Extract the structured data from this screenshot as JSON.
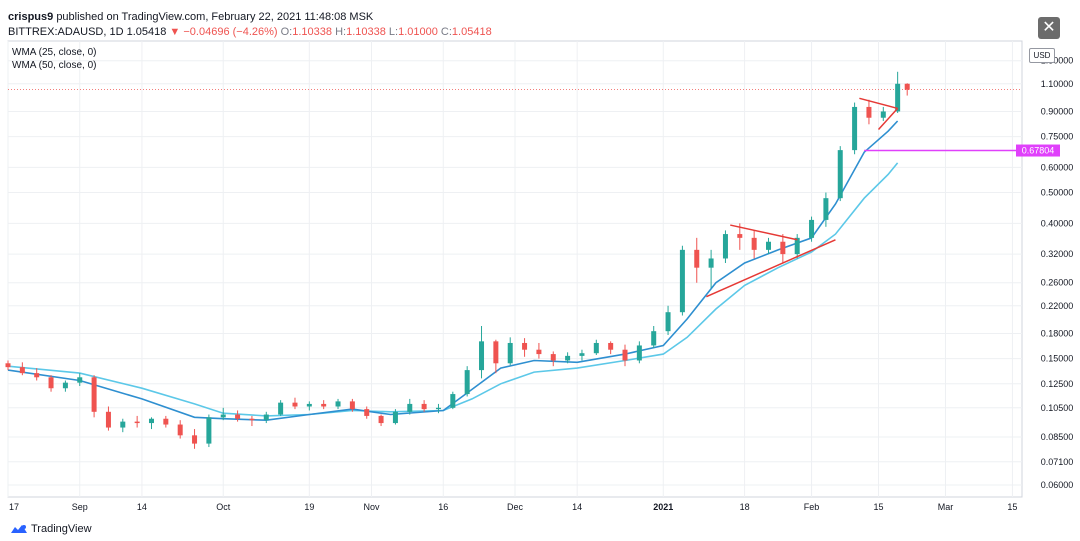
{
  "header": {
    "publisher": "crispus9",
    "published_text": "published on TradingView.com, February 22, 2021 11:48:08 MSK",
    "symbol": "BITTREX:ADAUSD, 1D",
    "last": "1.05418",
    "change_arrow": "▼",
    "change": "−0.04696 (−4.26%)",
    "o_label": "O:",
    "o": "1.10338",
    "h_label": "H:",
    "h": "1.10338",
    "l_label": "L:",
    "l": "1.01000",
    "c_label": "C:",
    "c": "1.05418"
  },
  "close_icon": "close-icon",
  "currency": "USD",
  "footer": {
    "brand": "TradingView",
    "logo_icon": "tradingview-logo-icon"
  },
  "colors": {
    "up": "#26a69a",
    "down": "#ef5350",
    "wma25": "#2e8fd0",
    "wma50": "#5cc8e8",
    "trend": "#e53935",
    "level": "#e040fb",
    "grid": "#eef0f3",
    "close_line": "#ef5350"
  },
  "chart_data": {
    "type": "candlestick",
    "y_scale": "log",
    "ylim": [
      0.055,
      1.5
    ],
    "legend": [
      {
        "name": "WMA (25, close, 0)"
      },
      {
        "name": "WMA (50, close, 0)"
      }
    ],
    "y_ticks": [
      "1.30000",
      "1.10000",
      "0.90000",
      "0.75000",
      "0.60000",
      "0.50000",
      "0.40000",
      "0.32000",
      "0.26000",
      "0.22000",
      "0.18000",
      "0.15000",
      "0.12500",
      "0.10500",
      "0.08500",
      "0.07100",
      "0.06000"
    ],
    "y_tick_values": [
      1.3,
      1.1,
      0.9,
      0.75,
      0.6,
      0.5,
      0.4,
      0.32,
      0.26,
      0.22,
      0.18,
      0.15,
      0.125,
      0.105,
      0.085,
      0.071,
      0.06
    ],
    "x_range": [
      "2020-08-17",
      "2021-03-17"
    ],
    "x_ticks": [
      {
        "label": "17",
        "date": "2020-08-17"
      },
      {
        "label": "Sep",
        "date": "2020-09-01"
      },
      {
        "label": "14",
        "date": "2020-09-14"
      },
      {
        "label": "Oct",
        "date": "2020-10-01"
      },
      {
        "label": "19",
        "date": "2020-10-19"
      },
      {
        "label": "Nov",
        "date": "2020-11-01"
      },
      {
        "label": "16",
        "date": "2020-11-16"
      },
      {
        "label": "Dec",
        "date": "2020-12-01"
      },
      {
        "label": "14",
        "date": "2020-12-14"
      },
      {
        "label": "2021",
        "date": "2021-01-01",
        "bold": true
      },
      {
        "label": "18",
        "date": "2021-01-18"
      },
      {
        "label": "Feb",
        "date": "2021-02-01"
      },
      {
        "label": "15",
        "date": "2021-02-15"
      },
      {
        "label": "Mar",
        "date": "2021-03-01"
      },
      {
        "label": "15",
        "date": "2021-03-15"
      }
    ],
    "last_close": 1.05418,
    "level": {
      "value": 0.67804,
      "label": "0.67804",
      "from": "2021-02-12"
    },
    "trendlines": [
      {
        "x1": "2021-01-15",
        "y1": 0.395,
        "x2": "2021-01-29",
        "y2": 0.355
      },
      {
        "x1": "2021-01-10",
        "y1": 0.235,
        "x2": "2021-02-06",
        "y2": 0.355
      },
      {
        "x1": "2021-02-11",
        "y1": 0.99,
        "x2": "2021-02-19",
        "y2": 0.92
      },
      {
        "x1": "2021-02-15",
        "y1": 0.79,
        "x2": "2021-02-19",
        "y2": 0.92
      }
    ],
    "wma25": [
      {
        "x": "2020-08-17",
        "y": 0.138
      },
      {
        "x": "2020-09-01",
        "y": 0.128
      },
      {
        "x": "2020-09-14",
        "y": 0.112
      },
      {
        "x": "2020-09-25",
        "y": 0.098
      },
      {
        "x": "2020-10-01",
        "y": 0.097
      },
      {
        "x": "2020-10-10",
        "y": 0.096
      },
      {
        "x": "2020-10-19",
        "y": 0.1
      },
      {
        "x": "2020-10-28",
        "y": 0.104
      },
      {
        "x": "2020-11-05",
        "y": 0.1
      },
      {
        "x": "2020-11-16",
        "y": 0.103
      },
      {
        "x": "2020-11-22",
        "y": 0.12
      },
      {
        "x": "2020-11-28",
        "y": 0.14
      },
      {
        "x": "2020-12-05",
        "y": 0.148
      },
      {
        "x": "2020-12-14",
        "y": 0.146
      },
      {
        "x": "2020-12-24",
        "y": 0.155
      },
      {
        "x": "2021-01-01",
        "y": 0.165
      },
      {
        "x": "2021-01-06",
        "y": 0.2
      },
      {
        "x": "2021-01-12",
        "y": 0.26
      },
      {
        "x": "2021-01-18",
        "y": 0.3
      },
      {
        "x": "2021-01-25",
        "y": 0.33
      },
      {
        "x": "2021-02-01",
        "y": 0.36
      },
      {
        "x": "2021-02-06",
        "y": 0.46
      },
      {
        "x": "2021-02-12",
        "y": 0.67
      },
      {
        "x": "2021-02-17",
        "y": 0.78
      },
      {
        "x": "2021-02-19",
        "y": 0.84
      }
    ],
    "wma50": [
      {
        "x": "2020-08-17",
        "y": 0.142
      },
      {
        "x": "2020-09-01",
        "y": 0.135
      },
      {
        "x": "2020-09-14",
        "y": 0.121
      },
      {
        "x": "2020-09-25",
        "y": 0.108
      },
      {
        "x": "2020-10-01",
        "y": 0.101
      },
      {
        "x": "2020-10-10",
        "y": 0.099
      },
      {
        "x": "2020-10-19",
        "y": 0.1
      },
      {
        "x": "2020-10-28",
        "y": 0.103
      },
      {
        "x": "2020-11-05",
        "y": 0.102
      },
      {
        "x": "2020-11-16",
        "y": 0.103
      },
      {
        "x": "2020-11-22",
        "y": 0.112
      },
      {
        "x": "2020-11-28",
        "y": 0.125
      },
      {
        "x": "2020-12-05",
        "y": 0.136
      },
      {
        "x": "2020-12-14",
        "y": 0.14
      },
      {
        "x": "2020-12-24",
        "y": 0.148
      },
      {
        "x": "2021-01-01",
        "y": 0.155
      },
      {
        "x": "2021-01-06",
        "y": 0.175
      },
      {
        "x": "2021-01-12",
        "y": 0.215
      },
      {
        "x": "2021-01-18",
        "y": 0.255
      },
      {
        "x": "2021-01-25",
        "y": 0.29
      },
      {
        "x": "2021-02-01",
        "y": 0.325
      },
      {
        "x": "2021-02-06",
        "y": 0.37
      },
      {
        "x": "2021-02-12",
        "y": 0.48
      },
      {
        "x": "2021-02-17",
        "y": 0.57
      },
      {
        "x": "2021-02-19",
        "y": 0.62
      }
    ],
    "candles": [
      {
        "x": "2020-08-17",
        "o": 0.145,
        "h": 0.148,
        "l": 0.138,
        "c": 0.141
      },
      {
        "x": "2020-08-20",
        "o": 0.141,
        "h": 0.146,
        "l": 0.133,
        "c": 0.135
      },
      {
        "x": "2020-08-23",
        "o": 0.135,
        "h": 0.14,
        "l": 0.128,
        "c": 0.131
      },
      {
        "x": "2020-08-26",
        "o": 0.131,
        "h": 0.133,
        "l": 0.118,
        "c": 0.121
      },
      {
        "x": "2020-08-29",
        "o": 0.121,
        "h": 0.128,
        "l": 0.118,
        "c": 0.126
      },
      {
        "x": "2020-09-01",
        "o": 0.126,
        "h": 0.135,
        "l": 0.123,
        "c": 0.131
      },
      {
        "x": "2020-09-04",
        "o": 0.131,
        "h": 0.133,
        "l": 0.098,
        "c": 0.102
      },
      {
        "x": "2020-09-07",
        "o": 0.102,
        "h": 0.106,
        "l": 0.089,
        "c": 0.091
      },
      {
        "x": "2020-09-10",
        "o": 0.091,
        "h": 0.097,
        "l": 0.088,
        "c": 0.095
      },
      {
        "x": "2020-09-13",
        "o": 0.095,
        "h": 0.099,
        "l": 0.091,
        "c": 0.094
      },
      {
        "x": "2020-09-16",
        "o": 0.094,
        "h": 0.098,
        "l": 0.09,
        "c": 0.097
      },
      {
        "x": "2020-09-19",
        "o": 0.097,
        "h": 0.099,
        "l": 0.091,
        "c": 0.093
      },
      {
        "x": "2020-09-22",
        "o": 0.093,
        "h": 0.096,
        "l": 0.084,
        "c": 0.086
      },
      {
        "x": "2020-09-25",
        "o": 0.086,
        "h": 0.09,
        "l": 0.078,
        "c": 0.081
      },
      {
        "x": "2020-09-28",
        "o": 0.081,
        "h": 0.1,
        "l": 0.079,
        "c": 0.098
      },
      {
        "x": "2020-10-01",
        "o": 0.098,
        "h": 0.105,
        "l": 0.096,
        "c": 0.1
      },
      {
        "x": "2020-10-04",
        "o": 0.1,
        "h": 0.103,
        "l": 0.095,
        "c": 0.097
      },
      {
        "x": "2020-10-07",
        "o": 0.097,
        "h": 0.099,
        "l": 0.092,
        "c": 0.096
      },
      {
        "x": "2020-10-10",
        "o": 0.096,
        "h": 0.102,
        "l": 0.094,
        "c": 0.1
      },
      {
        "x": "2020-10-13",
        "o": 0.1,
        "h": 0.111,
        "l": 0.099,
        "c": 0.109
      },
      {
        "x": "2020-10-16",
        "o": 0.109,
        "h": 0.113,
        "l": 0.104,
        "c": 0.106
      },
      {
        "x": "2020-10-19",
        "o": 0.106,
        "h": 0.11,
        "l": 0.103,
        "c": 0.108
      },
      {
        "x": "2020-10-22",
        "o": 0.108,
        "h": 0.111,
        "l": 0.104,
        "c": 0.106
      },
      {
        "x": "2020-10-25",
        "o": 0.106,
        "h": 0.112,
        "l": 0.104,
        "c": 0.11
      },
      {
        "x": "2020-10-28",
        "o": 0.11,
        "h": 0.112,
        "l": 0.102,
        "c": 0.104
      },
      {
        "x": "2020-10-31",
        "o": 0.104,
        "h": 0.106,
        "l": 0.097,
        "c": 0.099
      },
      {
        "x": "2020-11-03",
        "o": 0.099,
        "h": 0.1,
        "l": 0.092,
        "c": 0.094
      },
      {
        "x": "2020-11-06",
        "o": 0.094,
        "h": 0.104,
        "l": 0.093,
        "c": 0.102
      },
      {
        "x": "2020-11-09",
        "o": 0.102,
        "h": 0.112,
        "l": 0.1,
        "c": 0.108
      },
      {
        "x": "2020-11-12",
        "o": 0.108,
        "h": 0.111,
        "l": 0.102,
        "c": 0.104
      },
      {
        "x": "2020-11-15",
        "o": 0.104,
        "h": 0.108,
        "l": 0.101,
        "c": 0.105
      },
      {
        "x": "2020-11-18",
        "o": 0.105,
        "h": 0.118,
        "l": 0.104,
        "c": 0.116
      },
      {
        "x": "2020-11-21",
        "o": 0.116,
        "h": 0.142,
        "l": 0.114,
        "c": 0.138
      },
      {
        "x": "2020-11-24",
        "o": 0.138,
        "h": 0.19,
        "l": 0.13,
        "c": 0.17
      },
      {
        "x": "2020-11-27",
        "o": 0.17,
        "h": 0.172,
        "l": 0.135,
        "c": 0.145
      },
      {
        "x": "2020-11-30",
        "o": 0.145,
        "h": 0.175,
        "l": 0.143,
        "c": 0.168
      },
      {
        "x": "2020-12-03",
        "o": 0.168,
        "h": 0.174,
        "l": 0.152,
        "c": 0.16
      },
      {
        "x": "2020-12-06",
        "o": 0.16,
        "h": 0.168,
        "l": 0.15,
        "c": 0.155
      },
      {
        "x": "2020-12-09",
        "o": 0.155,
        "h": 0.158,
        "l": 0.142,
        "c": 0.148
      },
      {
        "x": "2020-12-12",
        "o": 0.148,
        "h": 0.157,
        "l": 0.145,
        "c": 0.153
      },
      {
        "x": "2020-12-15",
        "o": 0.153,
        "h": 0.16,
        "l": 0.148,
        "c": 0.156
      },
      {
        "x": "2020-12-18",
        "o": 0.156,
        "h": 0.172,
        "l": 0.154,
        "c": 0.168
      },
      {
        "x": "2020-12-21",
        "o": 0.168,
        "h": 0.17,
        "l": 0.155,
        "c": 0.16
      },
      {
        "x": "2020-12-24",
        "o": 0.16,
        "h": 0.166,
        "l": 0.142,
        "c": 0.148
      },
      {
        "x": "2020-12-27",
        "o": 0.148,
        "h": 0.17,
        "l": 0.145,
        "c": 0.165
      },
      {
        "x": "2020-12-30",
        "o": 0.165,
        "h": 0.19,
        "l": 0.162,
        "c": 0.183
      },
      {
        "x": "2021-01-02",
        "o": 0.183,
        "h": 0.22,
        "l": 0.178,
        "c": 0.21
      },
      {
        "x": "2021-01-05",
        "o": 0.21,
        "h": 0.34,
        "l": 0.205,
        "c": 0.33
      },
      {
        "x": "2021-01-08",
        "o": 0.33,
        "h": 0.36,
        "l": 0.26,
        "c": 0.29
      },
      {
        "x": "2021-01-11",
        "o": 0.29,
        "h": 0.33,
        "l": 0.25,
        "c": 0.31
      },
      {
        "x": "2021-01-14",
        "o": 0.31,
        "h": 0.38,
        "l": 0.3,
        "c": 0.37
      },
      {
        "x": "2021-01-17",
        "o": 0.37,
        "h": 0.4,
        "l": 0.33,
        "c": 0.36
      },
      {
        "x": "2021-01-20",
        "o": 0.36,
        "h": 0.38,
        "l": 0.31,
        "c": 0.33
      },
      {
        "x": "2021-01-23",
        "o": 0.33,
        "h": 0.36,
        "l": 0.32,
        "c": 0.35
      },
      {
        "x": "2021-01-26",
        "o": 0.35,
        "h": 0.37,
        "l": 0.3,
        "c": 0.32
      },
      {
        "x": "2021-01-29",
        "o": 0.32,
        "h": 0.37,
        "l": 0.31,
        "c": 0.36
      },
      {
        "x": "2021-02-01",
        "o": 0.36,
        "h": 0.42,
        "l": 0.35,
        "c": 0.41
      },
      {
        "x": "2021-02-04",
        "o": 0.41,
        "h": 0.5,
        "l": 0.39,
        "c": 0.48
      },
      {
        "x": "2021-02-07",
        "o": 0.48,
        "h": 0.7,
        "l": 0.47,
        "c": 0.68
      },
      {
        "x": "2021-02-10",
        "o": 0.68,
        "h": 0.96,
        "l": 0.66,
        "c": 0.93
      },
      {
        "x": "2021-02-13",
        "o": 0.93,
        "h": 0.98,
        "l": 0.82,
        "c": 0.86
      },
      {
        "x": "2021-02-16",
        "o": 0.86,
        "h": 0.93,
        "l": 0.84,
        "c": 0.9
      },
      {
        "x": "2021-02-19",
        "o": 0.9,
        "h": 1.2,
        "l": 0.89,
        "c": 1.1
      },
      {
        "x": "2021-02-21",
        "o": 1.1,
        "h": 1.104,
        "l": 1.01,
        "c": 1.054
      }
    ]
  }
}
